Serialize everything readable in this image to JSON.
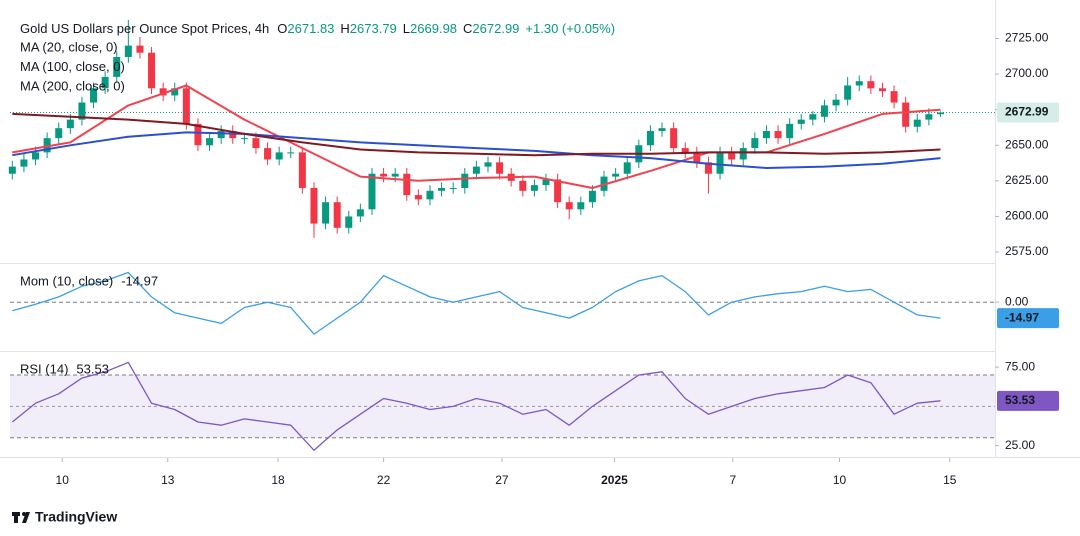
{
  "chart_data": [
    {
      "type": "candlestick",
      "title": "Gold US Dollars per Ounce Spot Prices, 4h",
      "ohlc_prefixes": [
        "O",
        "H",
        "L",
        "C"
      ],
      "change_label": "+1.30 (+0.05%)",
      "up_color": "#089981",
      "down_color": "#f23645",
      "open": [
        2630,
        2635,
        2640,
        2645,
        2655,
        2662,
        2668,
        2680,
        2690,
        2698,
        2712,
        2720,
        2715,
        2690,
        2685,
        2690,
        2665,
        2650,
        2655,
        2660,
        2655,
        2655,
        2648,
        2640,
        2645,
        2645,
        2620,
        2595,
        2610,
        2592,
        2600,
        2605,
        2630,
        2628,
        2630,
        2615,
        2612,
        2618,
        2620,
        2620,
        2630,
        2635,
        2638,
        2630,
        2625,
        2618,
        2622,
        2626,
        2610,
        2605,
        2610,
        2618,
        2628,
        2630,
        2638,
        2650,
        2660,
        2662,
        2648,
        2645,
        2638,
        2630,
        2645,
        2640,
        2648,
        2655,
        2660,
        2655,
        2665,
        2668,
        2670,
        2678,
        2682,
        2692,
        2695,
        2690,
        2688,
        2680,
        2663,
        2668,
        2671.83
      ],
      "high": [
        2639,
        2644,
        2649,
        2659,
        2666,
        2672,
        2684,
        2694,
        2702,
        2716,
        2738,
        2726,
        2719,
        2694,
        2694,
        2694,
        2669,
        2659,
        2664,
        2664,
        2659,
        2659,
        2652,
        2649,
        2649,
        2649,
        2624,
        2614,
        2614,
        2604,
        2609,
        2634,
        2634,
        2634,
        2634,
        2619,
        2622,
        2624,
        2624,
        2634,
        2639,
        2642,
        2642,
        2634,
        2629,
        2626,
        2630,
        2630,
        2614,
        2614,
        2622,
        2632,
        2634,
        2642,
        2654,
        2664,
        2666,
        2666,
        2652,
        2649,
        2642,
        2649,
        2649,
        2652,
        2659,
        2664,
        2664,
        2669,
        2672,
        2674,
        2682,
        2686,
        2698,
        2699,
        2699,
        2694,
        2692,
        2684,
        2672,
        2676,
        2673.79
      ],
      "low": [
        2626,
        2631,
        2636,
        2641,
        2651,
        2658,
        2664,
        2676,
        2686,
        2694,
        2708,
        2711,
        2686,
        2681,
        2681,
        2661,
        2646,
        2646,
        2651,
        2651,
        2651,
        2644,
        2636,
        2636,
        2641,
        2616,
        2585,
        2591,
        2588,
        2588,
        2596,
        2601,
        2624,
        2624,
        2611,
        2608,
        2608,
        2614,
        2616,
        2616,
        2626,
        2631,
        2626,
        2621,
        2614,
        2614,
        2618,
        2606,
        2598,
        2601,
        2606,
        2614,
        2624,
        2626,
        2634,
        2646,
        2656,
        2644,
        2641,
        2634,
        2616,
        2626,
        2636,
        2636,
        2644,
        2651,
        2651,
        2651,
        2661,
        2664,
        2666,
        2674,
        2678,
        2688,
        2686,
        2684,
        2676,
        2659,
        2659,
        2664,
        2669.98
      ],
      "close": [
        2635,
        2640,
        2645,
        2655,
        2662,
        2668,
        2680,
        2690,
        2698,
        2712,
        2720,
        2715,
        2690,
        2685,
        2690,
        2665,
        2650,
        2655,
        2660,
        2655,
        2655,
        2648,
        2640,
        2645,
        2645,
        2620,
        2595,
        2610,
        2592,
        2600,
        2605,
        2630,
        2628,
        2630,
        2615,
        2612,
        2618,
        2620,
        2620,
        2630,
        2635,
        2638,
        2630,
        2625,
        2618,
        2622,
        2626,
        2610,
        2605,
        2610,
        2618,
        2628,
        2630,
        2638,
        2650,
        2660,
        2662,
        2648,
        2645,
        2638,
        2630,
        2645,
        2640,
        2648,
        2655,
        2660,
        2655,
        2665,
        2668,
        2671.83,
        2678,
        2682,
        2692,
        2695,
        2690,
        2688,
        2680,
        2663,
        2668,
        2671.83,
        2672.99
      ],
      "series": [
        {
          "name": "MA (20, close, 0)",
          "color": "#f0434f",
          "x": [
            0,
            5,
            10,
            15,
            20,
            25,
            30,
            35,
            40,
            45,
            50,
            55,
            60,
            65,
            70,
            75,
            80
          ],
          "values": [
            2645,
            2652,
            2678,
            2692,
            2668,
            2648,
            2628,
            2625,
            2627,
            2628,
            2620,
            2632,
            2645,
            2645,
            2658,
            2672,
            2675
          ]
        },
        {
          "name": "MA (100, close, 0)",
          "color": "#2a4fcf",
          "x": [
            0,
            5,
            10,
            15,
            20,
            25,
            30,
            35,
            40,
            45,
            50,
            55,
            60,
            65,
            70,
            75,
            80
          ],
          "values": [
            2643,
            2650,
            2656,
            2659,
            2658,
            2655,
            2652,
            2650,
            2648,
            2646,
            2643,
            2641,
            2637,
            2634,
            2635,
            2637,
            2641
          ]
        },
        {
          "name": "MA (200, close, 0)",
          "color": "#801922",
          "x": [
            0,
            5,
            10,
            15,
            20,
            25,
            30,
            35,
            40,
            45,
            50,
            55,
            60,
            65,
            70,
            75,
            80
          ],
          "values": [
            2672,
            2670,
            2668,
            2665,
            2658,
            2652,
            2647,
            2645,
            2644,
            2643,
            2644,
            2644,
            2645,
            2645,
            2644,
            2645,
            2647
          ]
        }
      ],
      "xlim": [
        -0.2,
        84.7
      ],
      "ylim": [
        2568,
        2745
      ],
      "yticks": [
        {
          "value": 2575,
          "label": "2575.00"
        },
        {
          "value": 2600,
          "label": "2600.00"
        },
        {
          "value": 2625,
          "label": "2625.00"
        },
        {
          "value": 2650,
          "label": "2650.00"
        },
        {
          "value": 2675,
          "label": "2675.00"
        },
        {
          "value": 2700,
          "label": "2700.00"
        },
        {
          "value": 2725,
          "label": "2725.00"
        }
      ]
    },
    {
      "type": "line",
      "series": [
        {
          "name": "Mom (10, close)",
          "color": "#3a9fe6",
          "x": [
            0,
            2,
            4,
            6,
            8,
            10,
            12,
            14,
            16,
            18,
            20,
            22,
            24,
            26,
            28,
            30,
            32,
            34,
            36,
            38,
            40,
            42,
            44,
            46,
            48,
            50,
            52,
            54,
            56,
            58,
            60,
            62,
            64,
            66,
            68,
            70,
            72,
            74,
            76,
            78,
            80
          ],
          "values": [
            -8,
            -2,
            5,
            15,
            20,
            28,
            5,
            -10,
            -15,
            -20,
            -5,
            0,
            -5,
            -30,
            -15,
            0,
            25,
            15,
            5,
            0,
            5,
            10,
            -5,
            -10,
            -15,
            -5,
            10,
            20,
            25,
            10,
            -12,
            0,
            5,
            8,
            10,
            15,
            10,
            12,
            0,
            -12,
            -14.97
          ]
        }
      ],
      "xlim": [
        -0.2,
        84.7
      ],
      "ylim": [
        -45,
        35
      ],
      "yticks": [
        {
          "value": 0,
          "label": "0.00"
        }
      ]
    },
    {
      "type": "line",
      "series": [
        {
          "name": "RSI (14)",
          "color": "#7e57c2",
          "x": [
            0,
            2,
            4,
            6,
            8,
            10,
            12,
            14,
            16,
            18,
            20,
            22,
            24,
            26,
            28,
            30,
            32,
            34,
            36,
            38,
            40,
            42,
            44,
            46,
            48,
            50,
            52,
            54,
            56,
            58,
            60,
            62,
            64,
            66,
            68,
            70,
            72,
            74,
            76,
            78,
            80
          ],
          "values": [
            40,
            52,
            58,
            68,
            72,
            78,
            52,
            48,
            40,
            38,
            42,
            40,
            38,
            22,
            35,
            45,
            55,
            52,
            48,
            50,
            55,
            52,
            45,
            48,
            38,
            50,
            60,
            70,
            72,
            55,
            45,
            50,
            55,
            58,
            60,
            62,
            70,
            65,
            45,
            52,
            53.53
          ]
        }
      ],
      "xlim": [
        -0.2,
        84.7
      ],
      "ylim": [
        19,
        84
      ],
      "yticks": [
        {
          "value": 25,
          "label": "25.00"
        },
        {
          "value": 75,
          "label": "75.00"
        }
      ],
      "bands": [
        30,
        70
      ],
      "midline": 50,
      "xticks": [
        {
          "value": 4.3,
          "label": "10"
        },
        {
          "value": 13.4,
          "label": "13"
        },
        {
          "value": 22.9,
          "label": "18"
        },
        {
          "value": 32,
          "label": "22"
        },
        {
          "value": 42.2,
          "label": "27"
        },
        {
          "value": 51.9,
          "label": "2025"
        },
        {
          "value": 62.1,
          "label": "7"
        },
        {
          "value": 71.3,
          "label": "10"
        },
        {
          "value": 80.8,
          "label": "15"
        }
      ]
    }
  ],
  "branding": "TradingView"
}
